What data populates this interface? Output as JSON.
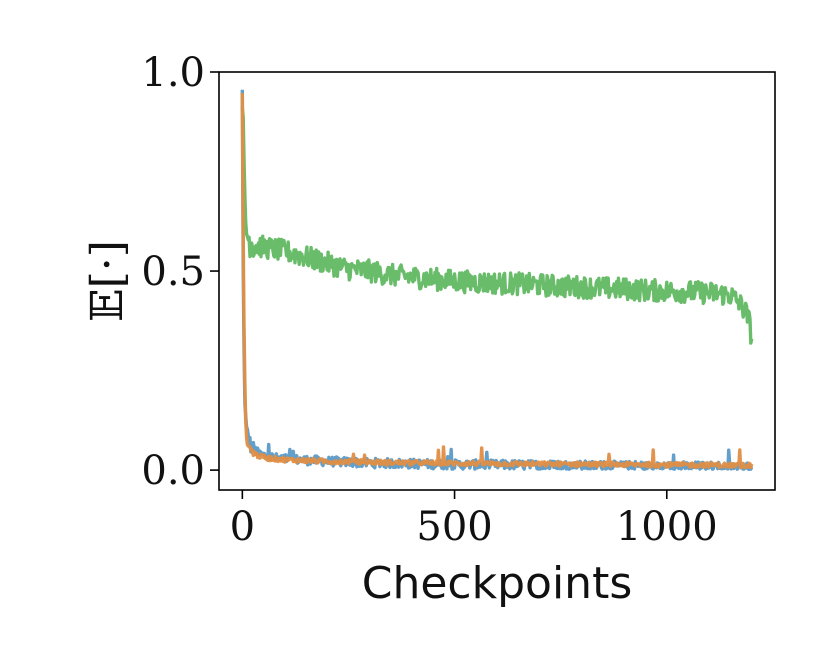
{
  "chart_data": {
    "type": "line",
    "title": "",
    "xlabel": "Checkpoints",
    "ylabel": "𝔼[·]",
    "xlim": [
      -55,
      1255
    ],
    "ylim": [
      -0.05,
      1.0
    ],
    "xticks": [
      0,
      500,
      1000
    ],
    "xtick_labels": [
      "0",
      "500",
      "1000"
    ],
    "yticks": [
      0.0,
      0.5,
      1.0
    ],
    "ytick_labels": [
      "0.0",
      "0.5",
      "1.0"
    ],
    "grid": false,
    "legend": "none",
    "series": [
      {
        "color": "#5b9ac6",
        "x": [
          0,
          2,
          5,
          8,
          10,
          15,
          20,
          30,
          40,
          60,
          80,
          100,
          150,
          200,
          250,
          300,
          350,
          400,
          450,
          500,
          550,
          600,
          650,
          700,
          750,
          800,
          850,
          900,
          950,
          1000,
          1050,
          1100,
          1150,
          1200
        ],
        "y": [
          0.95,
          0.5,
          0.2,
          0.13,
          0.1,
          0.08,
          0.06,
          0.05,
          0.04,
          0.035,
          0.03,
          0.028,
          0.025,
          0.022,
          0.02,
          0.018,
          0.017,
          0.016,
          0.015,
          0.014,
          0.014,
          0.013,
          0.013,
          0.012,
          0.012,
          0.011,
          0.011,
          0.01,
          0.01,
          0.01,
          0.009,
          0.009,
          0.008,
          0.008
        ]
      },
      {
        "color": "#61b862",
        "x": [
          0,
          2,
          5,
          8,
          10,
          15,
          20,
          30,
          50,
          100,
          150,
          200,
          250,
          300,
          350,
          400,
          450,
          500,
          550,
          600,
          650,
          700,
          750,
          800,
          850,
          900,
          950,
          1000,
          1050,
          1100,
          1150,
          1170,
          1185,
          1195,
          1200
        ],
        "y": [
          0.95,
          0.85,
          0.7,
          0.62,
          0.6,
          0.58,
          0.575,
          0.565,
          0.56,
          0.55,
          0.535,
          0.52,
          0.505,
          0.5,
          0.49,
          0.485,
          0.48,
          0.475,
          0.472,
          0.47,
          0.468,
          0.465,
          0.462,
          0.46,
          0.457,
          0.455,
          0.452,
          0.45,
          0.448,
          0.445,
          0.44,
          0.42,
          0.4,
          0.37,
          0.33
        ]
      },
      {
        "color": "#e08e45",
        "x": [
          0,
          2,
          5,
          8,
          10,
          15,
          20,
          30,
          40,
          60,
          80,
          100,
          150,
          200,
          250,
          300,
          350,
          400,
          450,
          500,
          550,
          600,
          650,
          700,
          750,
          800,
          850,
          900,
          950,
          1000,
          1050,
          1100,
          1150,
          1200
        ],
        "y": [
          0.95,
          0.6,
          0.25,
          0.12,
          0.08,
          0.06,
          0.05,
          0.04,
          0.035,
          0.03,
          0.028,
          0.026,
          0.024,
          0.022,
          0.021,
          0.02,
          0.019,
          0.018,
          0.018,
          0.017,
          0.017,
          0.016,
          0.016,
          0.015,
          0.015,
          0.015,
          0.014,
          0.014,
          0.014,
          0.013,
          0.013,
          0.013,
          0.012,
          0.012
        ]
      }
    ]
  }
}
